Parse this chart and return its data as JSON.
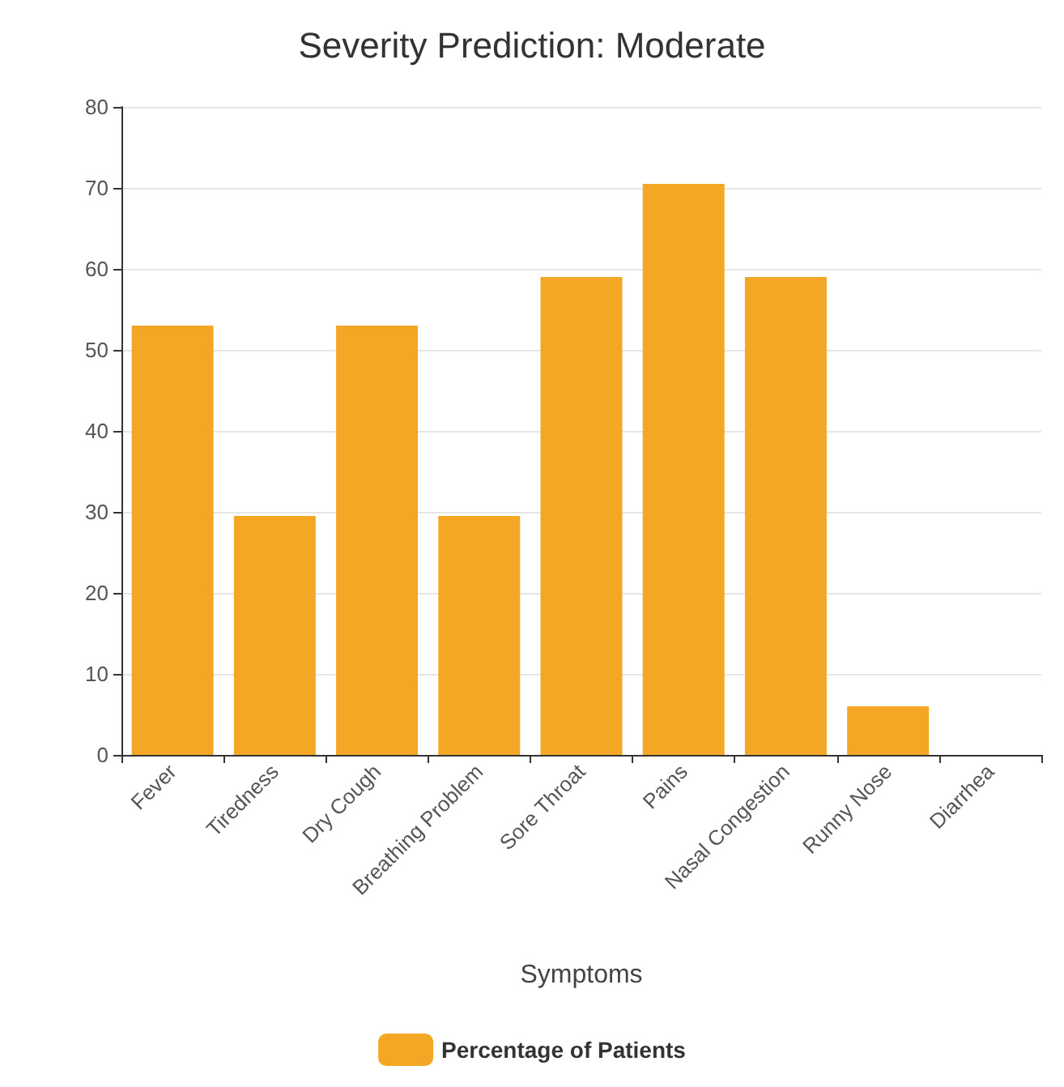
{
  "chart_data": {
    "type": "bar",
    "title": "Severity Prediction: Moderate",
    "xlabel": "Symptoms",
    "categories": [
      "Fever",
      "Tiredness",
      "Dry Cough",
      "Breathing Problem",
      "Sore Throat",
      "Pains",
      "Nasal Congestion",
      "Runny Nose",
      "Diarrhea"
    ],
    "series": [
      {
        "name": "Percentage of Patients",
        "color": "#f4a724",
        "values": [
          53,
          29.5,
          53,
          29.5,
          59,
          70.5,
          59,
          6,
          0
        ]
      }
    ],
    "ylim": [
      0,
      80
    ],
    "yticks": [
      0,
      10,
      20,
      30,
      40,
      50,
      60,
      70,
      80
    ],
    "grid": "y",
    "legend": "bottom"
  }
}
